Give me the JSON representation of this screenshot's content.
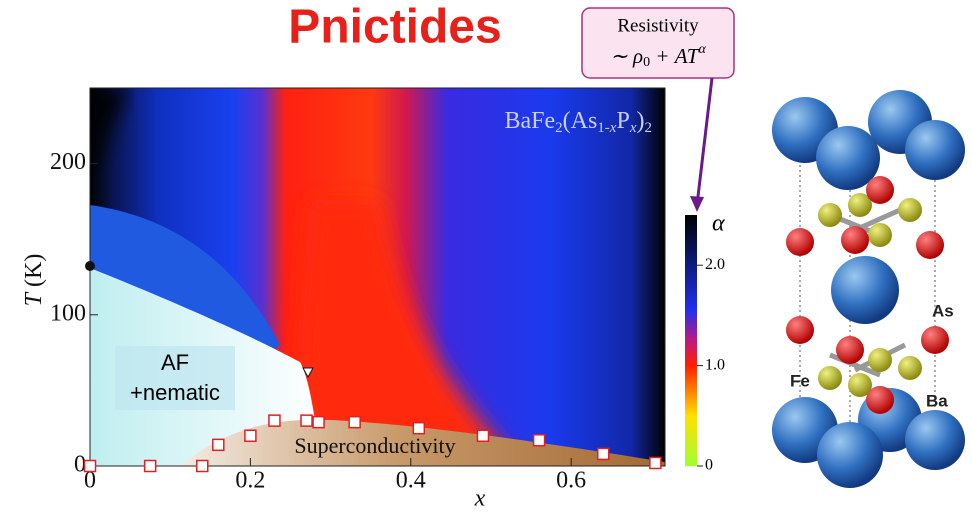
{
  "chart_data": {
    "type": "scatter",
    "title": "Pnictides",
    "callout": {
      "title": "Resistivity",
      "formula": [
        "∼ ρ",
        "0",
        " + AT",
        "α"
      ]
    },
    "compound": [
      "BaFe",
      "2",
      "(As",
      "1-",
      "x",
      "P",
      "x",
      ")",
      "2"
    ],
    "regions": {
      "af": [
        "AF",
        "+nematic"
      ],
      "sc": "Superconductivity"
    },
    "x_label": "x",
    "y_label": [
      "T",
      "(K)"
    ],
    "colorbar": {
      "label": "α",
      "clim": [
        0,
        2.5
      ],
      "ticks": [
        0,
        {
          "value": 1,
          "label": "1.0"
        },
        {
          "value": 2,
          "label": "2.0"
        }
      ]
    },
    "structure_labels": [
      "As",
      "Fe",
      "Ba"
    ],
    "xlim": [
      0,
      0.717
    ],
    "ylim": [
      0,
      250
    ],
    "xticks": [
      0,
      0.2,
      0.4,
      0.6
    ],
    "yticks": [
      0,
      100,
      200
    ],
    "series": [
      {
        "color": "#e02020",
        "x": [
          0,
          0.075,
          0.14,
          0.16,
          0.2,
          0.23,
          0.27,
          0.285,
          0.33,
          0.41,
          0.49,
          0.56,
          0.64,
          0.705
        ],
        "values": [
          0,
          0,
          0,
          14,
          20,
          30,
          30,
          29,
          29,
          25,
          20,
          17,
          8,
          2
        ]
      }
    ]
  }
}
